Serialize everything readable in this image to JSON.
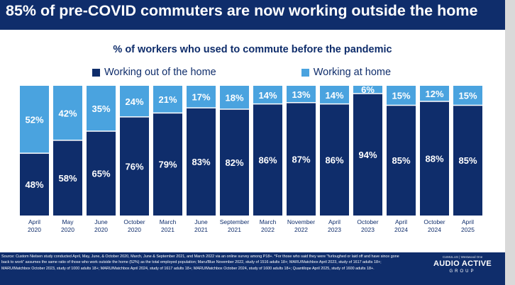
{
  "banner": {
    "title": "85% of pre-COVID commuters are now working outside the home"
  },
  "colors": {
    "out_of_home": "#0f2d6b",
    "at_home": "#4aa3df",
    "banner": "#0f2d6b"
  },
  "chart_data": {
    "type": "bar",
    "stacked": true,
    "percent_stacked": true,
    "title": "% of workers who used to commute before the pandemic",
    "legend_position": "top",
    "categories": [
      [
        "April",
        "2020"
      ],
      [
        "May",
        "2020"
      ],
      [
        "June",
        "2020"
      ],
      [
        "October",
        "2020"
      ],
      [
        "March",
        "2021"
      ],
      [
        "June",
        "2021"
      ],
      [
        "September",
        "2021"
      ],
      [
        "March",
        "2022"
      ],
      [
        "November",
        "2022"
      ],
      [
        "April",
        "2023"
      ],
      [
        "October",
        "2023"
      ],
      [
        "April",
        "2024"
      ],
      [
        "October",
        "2024"
      ],
      [
        "April",
        "2025"
      ]
    ],
    "series": [
      {
        "name": "Working out of the home",
        "values": [
          48,
          58,
          65,
          76,
          79,
          83,
          82,
          86,
          87,
          86,
          94,
          85,
          88,
          85
        ]
      },
      {
        "name": "Working at home",
        "values": [
          52,
          42,
          35,
          24,
          21,
          17,
          18,
          14,
          13,
          14,
          6,
          15,
          12,
          15
        ]
      }
    ],
    "ylim": [
      0,
      100
    ]
  },
  "footer": {
    "source": "Source: Custom Nielsen study conducted April, May, June, & October 2020, March, June & September 2021, and March 2022 via an online survey among P18+. *For those who said they were \"furloughed or laid off and have since gone back to work\" assumes the same ratio of those who work outside the home (52%) as the total employed population; Maru/Blue November 2022, study of 1516 adults 18+; MARU/Matchbox April 2023, study of 1617 adults 18+; MARU/Matchbox October 2023, study of 1000 adults 18+; MARU/Matchbox April 2024, study of 1617 adults 18+; MARU/Matchbox October 2024, study of 1600 adults 18+; Quantilope April 2025, study of 1600 adults 18+.",
    "logo_top": "CUMULUS | Westwood One",
    "logo_main": "AUDIO ACTIVE",
    "logo_sub": "GROUP"
  }
}
